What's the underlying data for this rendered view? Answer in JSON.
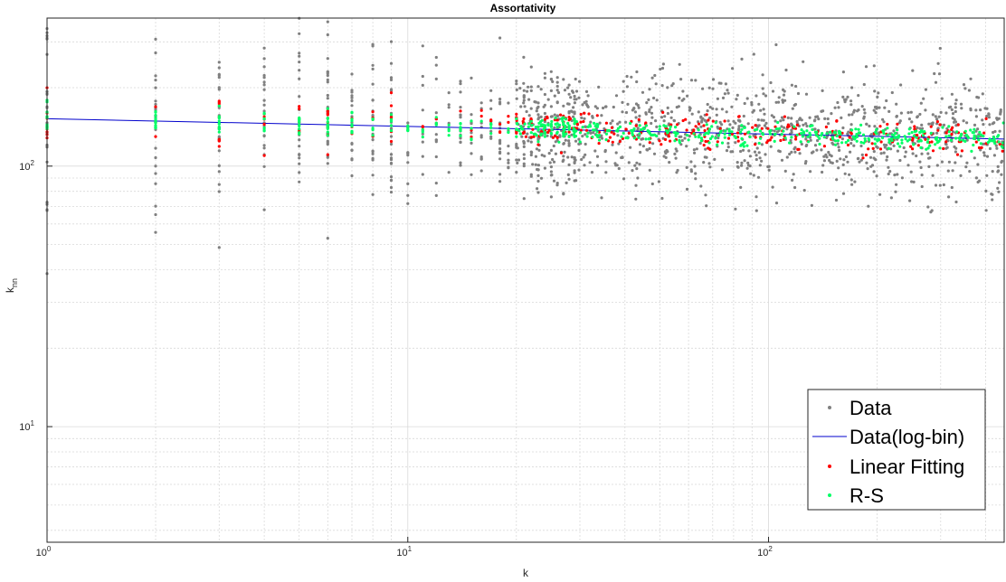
{
  "chart_data": {
    "type": "scatter",
    "title": "Assortativity",
    "xlabel": "k",
    "ylabel_main": "k",
    "ylabel_sub": "nn",
    "xscale": "log",
    "yscale": "log",
    "xlim": [
      1,
      450
    ],
    "ylim": [
      3.6,
      370
    ],
    "xticks": [
      {
        "value": 1,
        "base": "10",
        "exp": "0"
      },
      {
        "value": 10,
        "base": "10",
        "exp": "1"
      },
      {
        "value": 100,
        "base": "10",
        "exp": "2"
      }
    ],
    "yticks": [
      {
        "value": 10,
        "base": "10",
        "exp": "1"
      },
      {
        "value": 100,
        "base": "10",
        "exp": "2"
      }
    ],
    "grid": true,
    "legend_position": "bottom-right",
    "colors": {
      "data": "#808080",
      "logbin": "#0000cc",
      "linear": "#ff0000",
      "rs": "#00ff66",
      "grid": "#d9d9d9",
      "axis": "#262626"
    },
    "series": [
      {
        "name": "Data",
        "kind": "points",
        "color": "#808080",
        "n": 1450,
        "seed": 7
      },
      {
        "name": "Data(log-bin)",
        "kind": "line",
        "color": "#0000cc",
        "x": [
          1,
          450
        ],
        "y": [
          152,
          127
        ]
      },
      {
        "name": "Linear Fitting",
        "kind": "points",
        "color": "#ff0000",
        "n": 330,
        "seed": 11
      },
      {
        "name": "R-S",
        "kind": "points",
        "color": "#00ff66",
        "n": 560,
        "seed": 23
      }
    ]
  }
}
